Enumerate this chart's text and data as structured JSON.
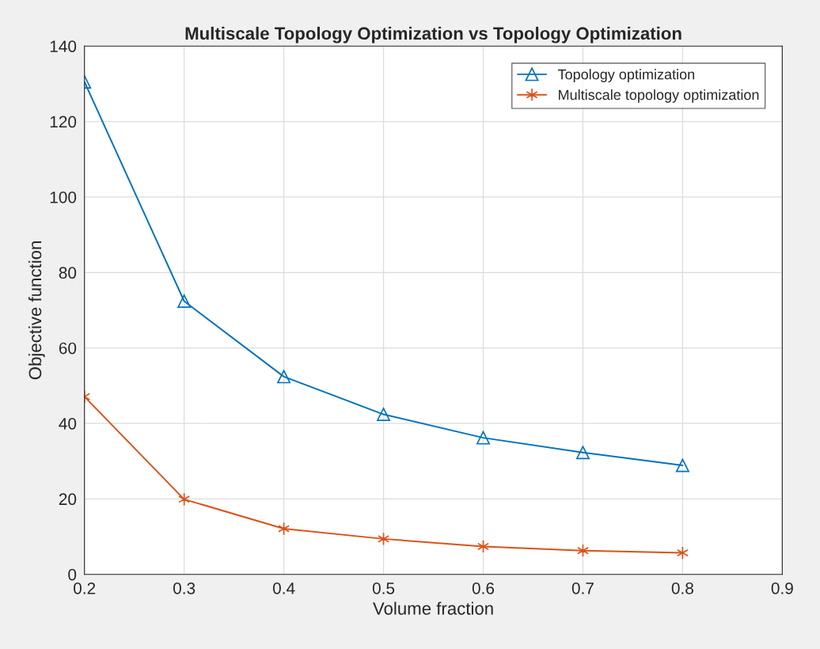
{
  "chart_data": {
    "type": "line",
    "title": "Multiscale Topology Optimization vs Topology Optimization",
    "xlabel": "Volume fraction",
    "ylabel": "Objective function",
    "x": [
      0.2,
      0.3,
      0.4,
      0.5,
      0.6,
      0.7,
      0.8
    ],
    "series": [
      {
        "name": "Topology optimization",
        "color": "#0072bd",
        "marker": "triangle",
        "values": [
          130.5,
          72.4,
          52.4,
          42.4,
          36.2,
          32.3,
          28.9
        ]
      },
      {
        "name": "Multiscale topology optimization",
        "color": "#d95319",
        "marker": "cross",
        "values": [
          47.1,
          19.9,
          12.1,
          9.4,
          7.4,
          6.3,
          5.7
        ]
      }
    ],
    "xlim": [
      0.2,
      0.9
    ],
    "xticks": [
      0.2,
      0.3,
      0.4,
      0.5,
      0.6,
      0.7,
      0.8,
      0.9
    ],
    "ylim": [
      0,
      140
    ],
    "yticks": [
      0,
      20,
      40,
      60,
      80,
      100,
      120,
      140
    ],
    "grid": true,
    "legend": "top right",
    "line_style": "solid"
  }
}
